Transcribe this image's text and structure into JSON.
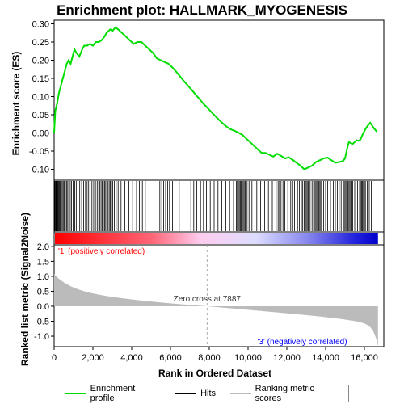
{
  "chart_data": {
    "type": "line",
    "title": "Enrichment plot: HALLMARK_MYOGENESIS",
    "ylabel_top": "Enrichment score (ES)",
    "ylabel_bottom": "Ranked list metric (Signal2Noise)",
    "xlabel": "Rank in Ordered Dataset",
    "x_range": [
      0,
      17000
    ],
    "x_ticks": [
      0,
      2000,
      4000,
      6000,
      8000,
      10000,
      12000,
      14000,
      16000
    ],
    "x_tick_labels": [
      "0",
      "2,000",
      "4,000",
      "6,000",
      "8,000",
      "10,000",
      "12,000",
      "14,000",
      "16,000"
    ],
    "es_ylim": [
      -0.13,
      0.31
    ],
    "es_ticks": [
      -0.1,
      -0.05,
      0.0,
      0.05,
      0.1,
      0.15,
      0.2,
      0.25,
      0.3
    ],
    "es_tick_labels": [
      "-0.10",
      "-0.05",
      "0.00",
      "0.05",
      "0.10",
      "0.15",
      "0.20",
      "0.25",
      "0.30"
    ],
    "metric_ylim": [
      -1.35,
      2.05
    ],
    "metric_ticks": [
      2.0,
      1.5,
      1.0,
      0.5,
      0.0,
      -0.5,
      -1.0
    ],
    "metric_tick_labels": [
      "2.0",
      "1.5",
      "1.0",
      "0.5",
      "0.0",
      "-0.5",
      "-1.0"
    ],
    "zero_cross_rank": 7887,
    "zero_cross_label": "Zero cross at 7887",
    "positive_label": "'1' (positively correlated)",
    "negative_label": "'3' (negatively correlated)",
    "es_profile": {
      "x": [
        0,
        60,
        150,
        250,
        350,
        450,
        550,
        650,
        750,
        850,
        950,
        1050,
        1150,
        1300,
        1450,
        1550,
        1700,
        1850,
        2000,
        2150,
        2300,
        2450,
        2600,
        2700,
        2800,
        2900,
        3000,
        3150,
        3300,
        3500,
        3700,
        3900,
        4100,
        4300,
        4500,
        4700,
        4900,
        5100,
        5300,
        5500,
        5700,
        5900,
        6100,
        6300,
        6500,
        6700,
        6900,
        7100,
        7300,
        7500,
        7700,
        7887,
        8100,
        8300,
        8500,
        8700,
        8900,
        9100,
        9300,
        9500,
        9700,
        9900,
        10100,
        10300,
        10500,
        10700,
        10900,
        11100,
        11300,
        11500,
        11700,
        11900,
        12100,
        12300,
        12500,
        12700,
        12900,
        13100,
        13300,
        13500,
        13700,
        13900,
        14100,
        14300,
        14500,
        14700,
        14900,
        15000,
        15100,
        15200,
        15300,
        15400,
        15500,
        15600,
        15700,
        15800,
        15900,
        16000,
        16100,
        16200,
        16300,
        16400,
        16500,
        16650
      ],
      "y": [
        0.0,
        0.06,
        0.08,
        0.11,
        0.13,
        0.15,
        0.17,
        0.19,
        0.2,
        0.19,
        0.21,
        0.23,
        0.22,
        0.21,
        0.23,
        0.24,
        0.24,
        0.245,
        0.24,
        0.25,
        0.25,
        0.255,
        0.265,
        0.275,
        0.28,
        0.285,
        0.28,
        0.29,
        0.285,
        0.275,
        0.265,
        0.255,
        0.245,
        0.25,
        0.25,
        0.24,
        0.23,
        0.22,
        0.205,
        0.2,
        0.195,
        0.19,
        0.18,
        0.168,
        0.155,
        0.142,
        0.13,
        0.118,
        0.105,
        0.093,
        0.08,
        0.07,
        0.058,
        0.047,
        0.036,
        0.026,
        0.017,
        0.01,
        0.006,
        0.001,
        -0.005,
        -0.015,
        -0.025,
        -0.035,
        -0.045,
        -0.055,
        -0.055,
        -0.06,
        -0.065,
        -0.057,
        -0.063,
        -0.07,
        -0.067,
        -0.074,
        -0.082,
        -0.09,
        -0.1,
        -0.095,
        -0.09,
        -0.08,
        -0.075,
        -0.07,
        -0.068,
        -0.075,
        -0.082,
        -0.08,
        -0.077,
        -0.07,
        -0.045,
        -0.025,
        -0.028,
        -0.03,
        -0.025,
        -0.02,
        -0.022,
        -0.018,
        -0.005,
        0.005,
        0.015,
        0.022,
        0.028,
        0.02,
        0.012,
        0.003
      ]
    },
    "hits": [
      10,
      30,
      60,
      90,
      120,
      150,
      180,
      210,
      250,
      290,
      330,
      370,
      420,
      470,
      520,
      580,
      640,
      700,
      760,
      830,
      900,
      980,
      1060,
      1140,
      1230,
      1320,
      1420,
      1520,
      1620,
      1700,
      1780,
      1860,
      1950,
      2040,
      2130,
      2220,
      2300,
      2360,
      2420,
      2480,
      2540,
      2600,
      2660,
      2720,
      2780,
      2840,
      2900,
      2960,
      3020,
      3100,
      3200,
      3300,
      3450,
      3650,
      3850,
      4050,
      4250,
      4400,
      4550,
      4700,
      5450,
      5550,
      5650,
      5750,
      5850,
      5950,
      6100,
      6450,
      6650,
      7050,
      7200,
      7350,
      7550,
      7700,
      7850,
      8050,
      8250,
      8450,
      8650,
      8850,
      9050,
      9250,
      9400,
      9450,
      9500,
      9550,
      9600,
      9650,
      9700,
      9750,
      9800,
      9850,
      9900,
      9950,
      10050,
      10200,
      10450,
      10650,
      10850,
      11050,
      11250,
      11450,
      11550,
      11620,
      11700,
      11800,
      11900,
      12050,
      12200,
      12300,
      12400,
      12550,
      12650,
      12750,
      12820,
      12900,
      12950,
      13000,
      13050,
      13100,
      13150,
      13200,
      13300,
      13380,
      13450,
      13500,
      13550,
      13600,
      13650,
      13700,
      13750,
      13800,
      13900,
      14000,
      14100,
      14250,
      14400,
      14500,
      14600,
      14700,
      14800,
      14900,
      14950,
      15000,
      15050,
      15100,
      15150,
      15200,
      15250,
      15300,
      15350,
      15400,
      15500,
      15650,
      15750,
      15800,
      15850,
      15900,
      15950,
      16000,
      16050,
      16150,
      16250,
      16350
    ]
  },
  "legend": {
    "profile_label": "Enrichment profile",
    "hits_label": "Hits",
    "metric_label": "Ranking metric scores"
  },
  "colors": {
    "profile": "#00dd00",
    "hits": "#000000",
    "metric_fill": "#bbbbbb",
    "positive": "#ff0000",
    "negative": "#0000ff",
    "positive_label": "#ff0000",
    "negative_label": "#0000ff"
  }
}
